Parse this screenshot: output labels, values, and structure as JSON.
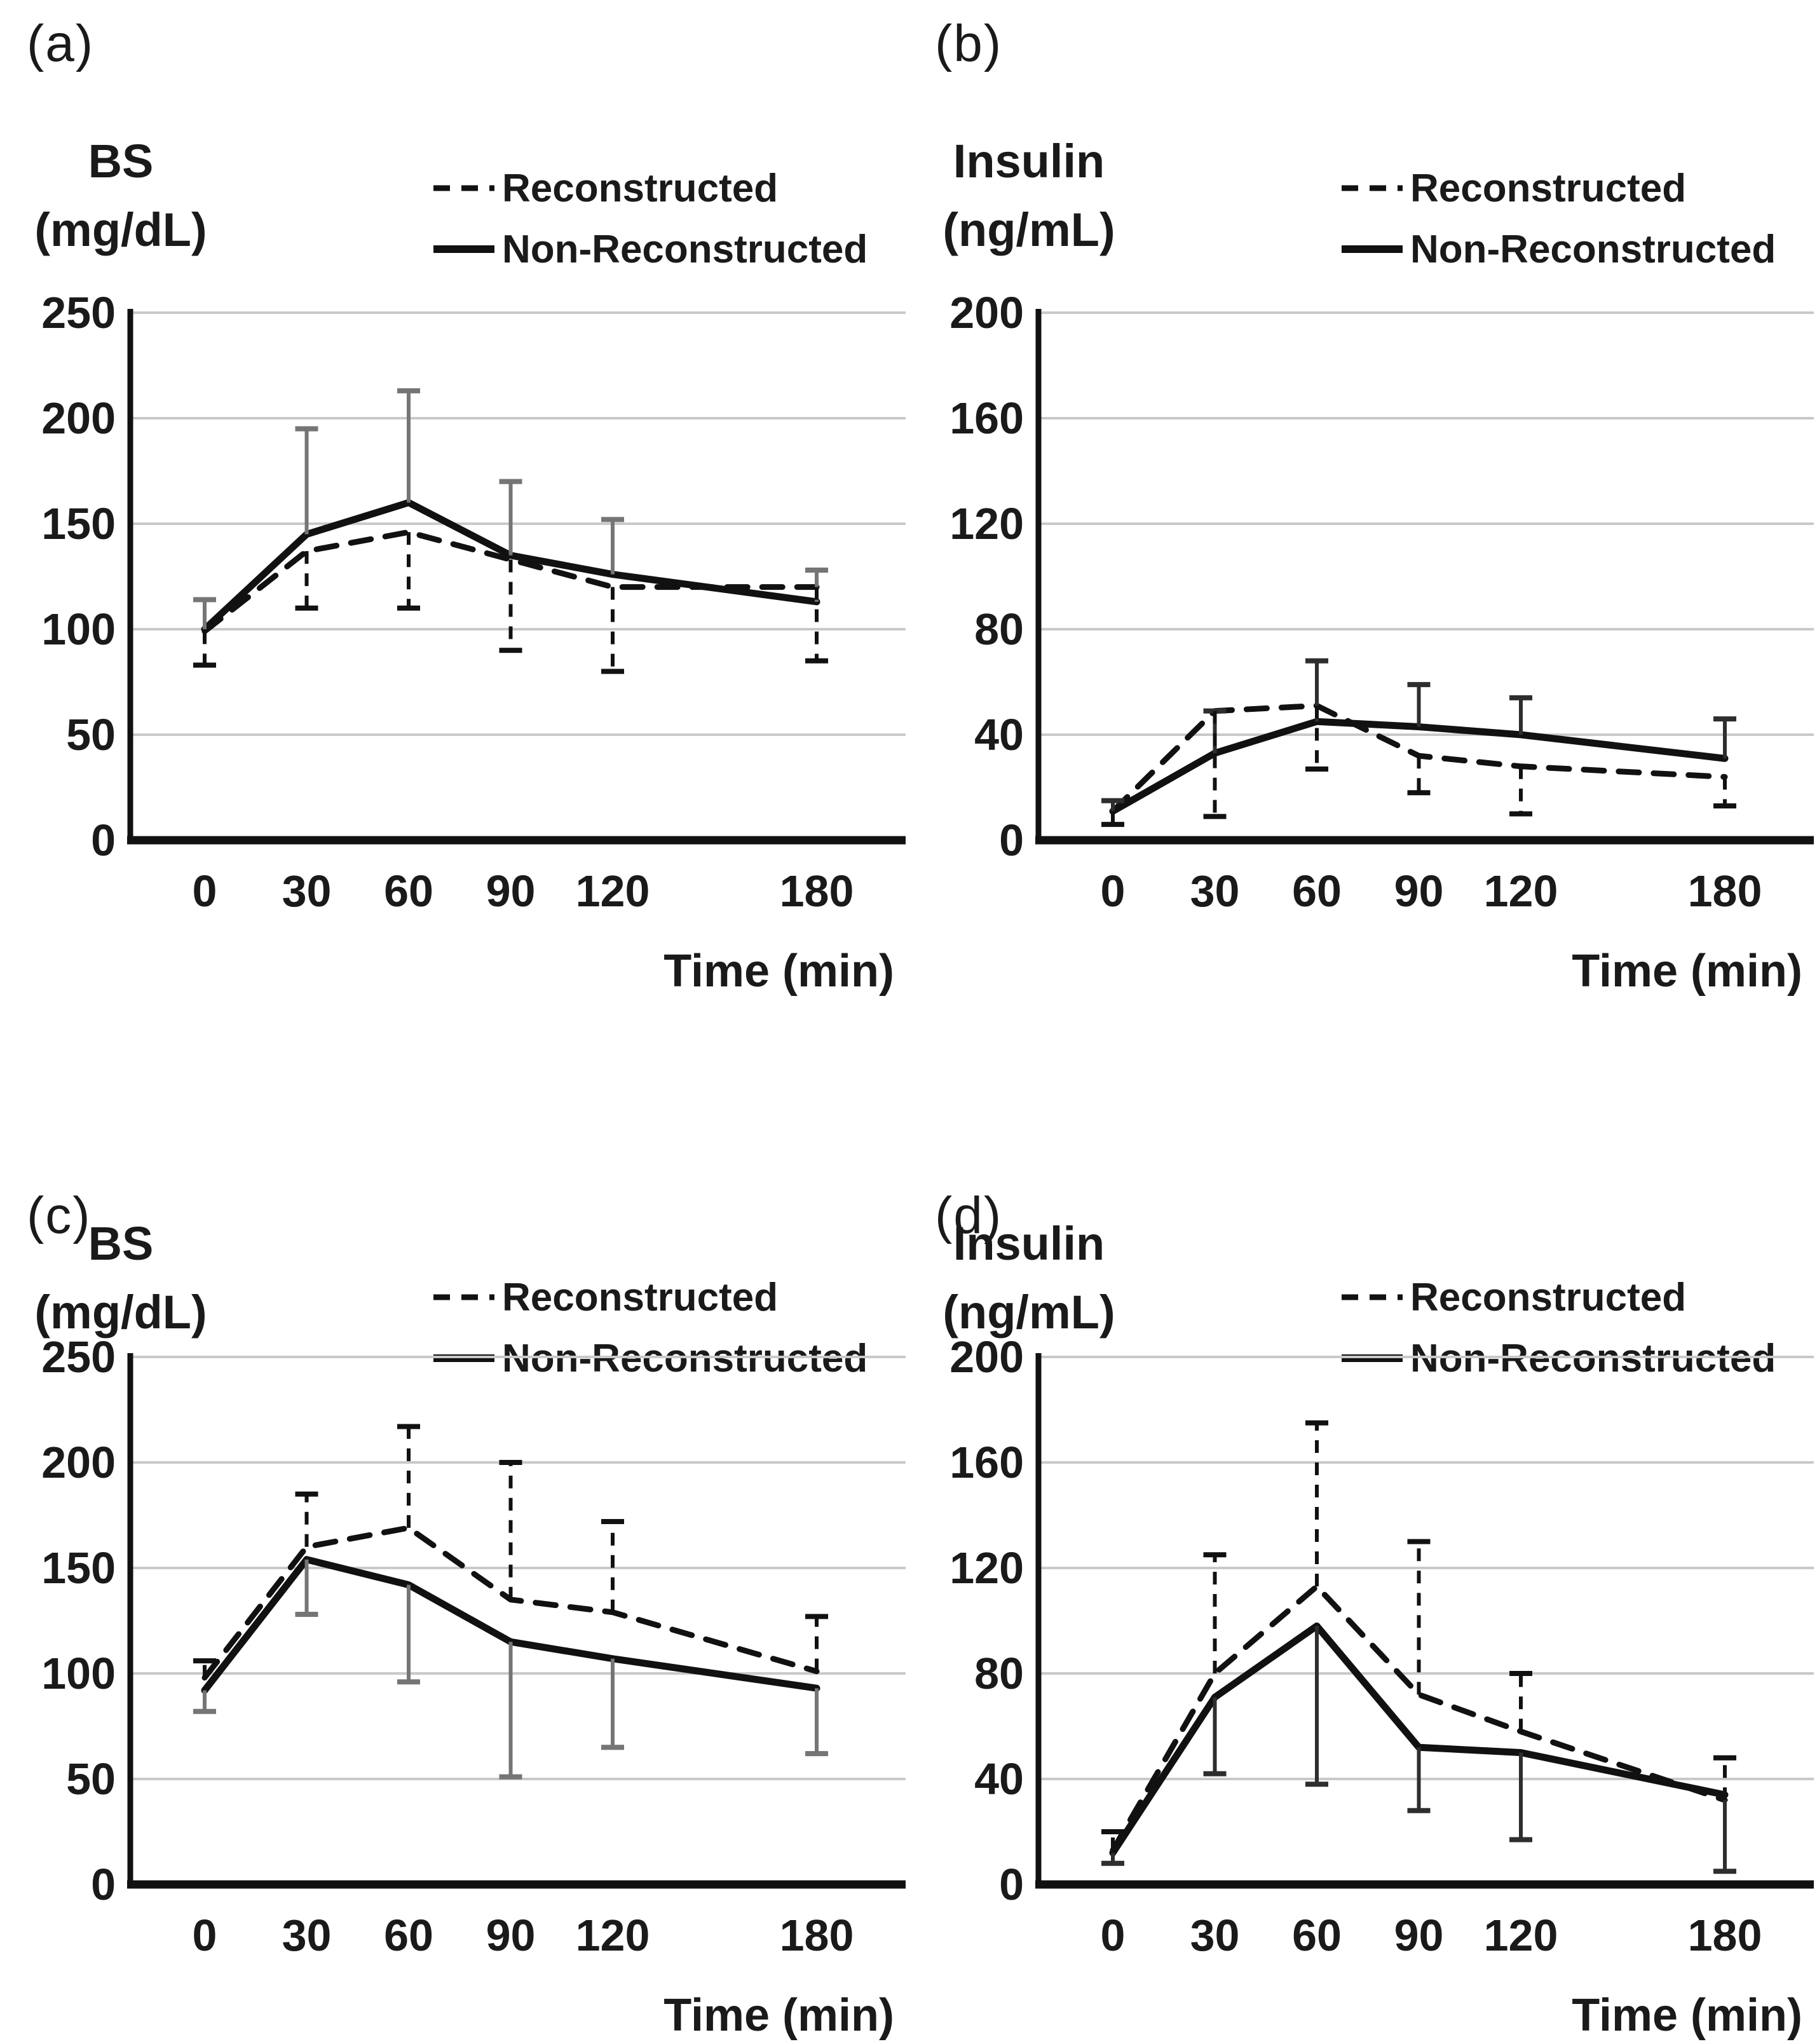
{
  "figure_title": "",
  "chart_data": [
    {
      "id": "a",
      "type": "line",
      "panel_label": "(a)",
      "ylabel_lines": [
        "BS",
        "(mg/dL)"
      ],
      "xlabel": "Time (min)",
      "x": [
        0,
        30,
        60,
        90,
        120,
        180
      ],
      "x_tick_labels": [
        "0",
        "30",
        "60",
        "90",
        "120",
        "180"
      ],
      "ylim": [
        0,
        250
      ],
      "ytick_step": 50,
      "y_tick_labels": [
        "0",
        "50",
        "100",
        "150",
        "200",
        "250"
      ],
      "grid": "horizontal",
      "legend_position": "top-right",
      "series": [
        {
          "name": "Non-Reconstructed",
          "line": "solid",
          "values": [
            100,
            145,
            160,
            135,
            126,
            113
          ],
          "error_bars": {
            "direction": "up",
            "cap_values": [
              114,
              195,
              213,
              170,
              152,
              128
            ]
          }
        },
        {
          "name": "Reconstructed",
          "line": "dashed",
          "values": [
            99,
            137,
            146,
            133,
            120,
            120
          ],
          "error_bars": {
            "direction": "down",
            "cap_values": [
              83,
              110,
              110,
              90,
              80,
              85
            ]
          }
        }
      ]
    },
    {
      "id": "b",
      "type": "line",
      "panel_label": "(b)",
      "ylabel_lines": [
        "Insulin",
        "(ng/mL)"
      ],
      "xlabel": "Time (min)",
      "x": [
        0,
        30,
        60,
        90,
        120,
        180
      ],
      "x_tick_labels": [
        "0",
        "30",
        "60",
        "90",
        "120",
        "180"
      ],
      "ylim": [
        0,
        200
      ],
      "ytick_step": 40,
      "y_tick_labels": [
        "0",
        "40",
        "80",
        "120",
        "160",
        "200"
      ],
      "grid": "horizontal",
      "legend_position": "top-right",
      "series": [
        {
          "name": "Non-Reconstructed",
          "line": "solid",
          "values": [
            11,
            33,
            45,
            43,
            40,
            31
          ],
          "error_bars": {
            "direction": "up",
            "cap_values": [
              15,
              49,
              68,
              59,
              54,
              46
            ]
          }
        },
        {
          "name": "Reconstructed",
          "line": "dashed",
          "values": [
            11,
            49,
            51,
            32,
            28,
            24
          ],
          "error_bars": {
            "direction": "down",
            "cap_values": [
              6,
              9,
              27,
              18,
              10,
              13
            ]
          }
        }
      ]
    },
    {
      "id": "c",
      "type": "line",
      "panel_label": "(c)",
      "ylabel_lines": [
        "BS",
        "(mg/dL)"
      ],
      "xlabel": "Time (min)",
      "x": [
        0,
        30,
        60,
        90,
        120,
        180
      ],
      "x_tick_labels": [
        "0",
        "30",
        "60",
        "90",
        "120",
        "180"
      ],
      "ylim": [
        0,
        250
      ],
      "ytick_step": 50,
      "y_tick_labels": [
        "0",
        "50",
        "100",
        "150",
        "200",
        "250"
      ],
      "grid": "horizontal",
      "legend_position": "top-right",
      "series": [
        {
          "name": "Non-Reconstructed",
          "line": "solid",
          "values": [
            92,
            154,
            142,
            115,
            107,
            93
          ],
          "error_bars": {
            "direction": "down",
            "cap_values": [
              82,
              128,
              96,
              51,
              65,
              62
            ]
          }
        },
        {
          "name": "Reconstructed",
          "line": "dashed",
          "values": [
            98,
            160,
            169,
            135,
            129,
            101
          ],
          "error_bars": {
            "direction": "up",
            "cap_values": [
              106,
              185,
              217,
              200,
              172,
              127
            ]
          }
        }
      ]
    },
    {
      "id": "d",
      "type": "line",
      "panel_label": "(d)",
      "ylabel_lines": [
        "Insulin",
        "(ng/mL)"
      ],
      "xlabel": "Time (min)",
      "x": [
        0,
        30,
        60,
        90,
        120,
        180
      ],
      "x_tick_labels": [
        "0",
        "30",
        "60",
        "90",
        "120",
        "180"
      ],
      "ylim": [
        0,
        200
      ],
      "ytick_step": 40,
      "y_tick_labels": [
        "0",
        "40",
        "80",
        "120",
        "160",
        "200"
      ],
      "grid": "horizontal",
      "legend_position": "top-right",
      "series": [
        {
          "name": "Non-Reconstructed",
          "line": "solid",
          "values": [
            12,
            71,
            98,
            52,
            50,
            34
          ],
          "error_bars": {
            "direction": "down",
            "cap_values": [
              8,
              42,
              38,
              28,
              17,
              5
            ]
          }
        },
        {
          "name": "Reconstructed",
          "line": "dashed",
          "values": [
            13,
            80,
            113,
            72,
            58,
            32
          ],
          "error_bars": {
            "direction": "up",
            "cap_values": [
              20,
              125,
              175,
              130,
              80,
              48
            ]
          }
        }
      ]
    }
  ],
  "colors": {
    "line": "#111111",
    "text": "#1a1a1a",
    "gridline": "#c9c9c9",
    "gray_error_bar": "#757575",
    "dark_error_bar": "#2e2e2e"
  }
}
